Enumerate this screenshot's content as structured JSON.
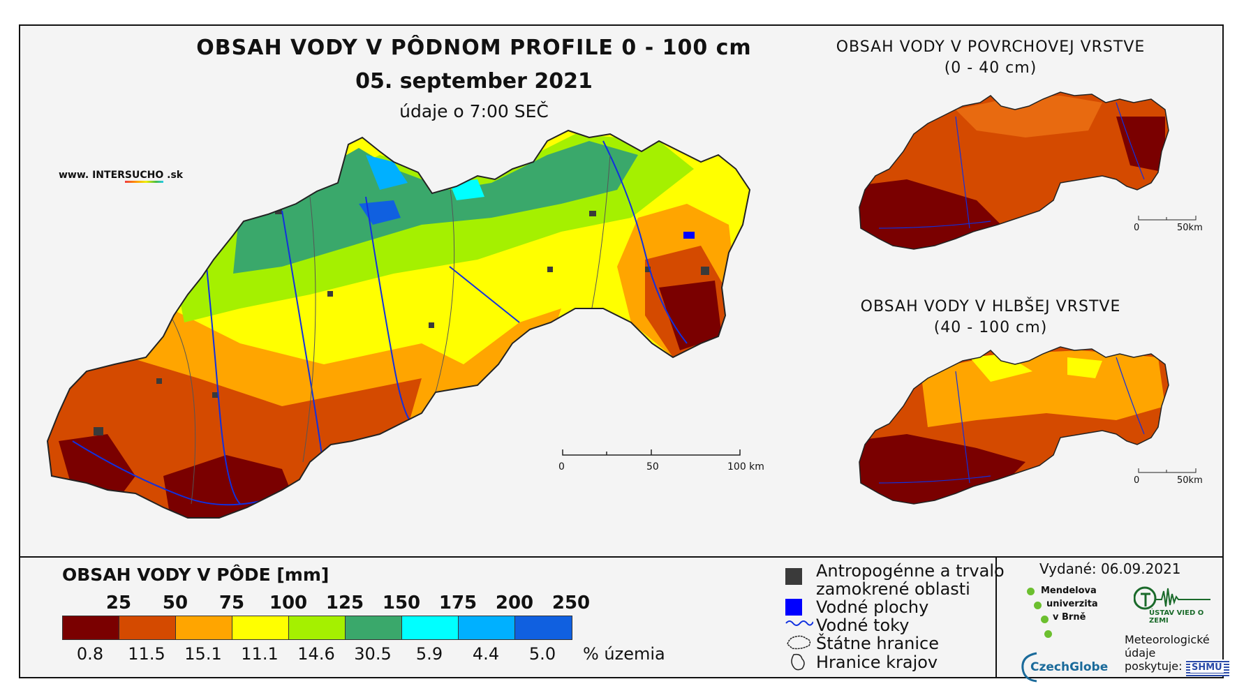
{
  "header": {
    "title": "OBSAH VODY V PÔDNOM PROFILE 0 - 100 cm",
    "date": "05. september 2021",
    "time": "údaje o 7:00 SEČ"
  },
  "watermark": {
    "prefix": "www. INTER",
    "accent": "SUCHO",
    "suffix": " .sk"
  },
  "inset_top": {
    "title": "OBSAH VODY V POVRCHOVEJ VRSTVE",
    "subtitle": "(0 - 40 cm)",
    "scale": {
      "start": "0",
      "end": "50km"
    }
  },
  "inset_bottom": {
    "title": "OBSAH VODY V HLBŠEJ VRSTVE",
    "subtitle": "(40 - 100 cm)",
    "scale": {
      "start": "0",
      "end": "50km"
    }
  },
  "main_scale": {
    "labels": [
      "0",
      "50",
      "100 km"
    ]
  },
  "legend": {
    "title": "OBSAH VODY V PÔDE [mm]",
    "classes": [
      {
        "upper": "25",
        "color": "#7a0000",
        "pct": "0.8"
      },
      {
        "upper": "50",
        "color": "#d44a00",
        "pct": "11.5"
      },
      {
        "upper": "75",
        "color": "#ffa500",
        "pct": "15.1"
      },
      {
        "upper": "100",
        "color": "#ffff00",
        "pct": "11.1"
      },
      {
        "upper": "125",
        "color": "#a5f000",
        "pct": "14.6"
      },
      {
        "upper": "150",
        "color": "#3aa86b",
        "pct": "30.5"
      },
      {
        "upper": "175",
        "color": "#00ffff",
        "pct": "5.9"
      },
      {
        "upper": "200",
        "color": "#00b0ff",
        "pct": "4.4"
      },
      {
        "upper": "250",
        "color": "#1060e0",
        "pct": "5.0"
      }
    ],
    "pct_unit": "% územia"
  },
  "map_legend": {
    "anthropogenic_line1": "Antropogénne a trvalo",
    "anthropogenic_line2": "zamokrené oblasti",
    "water_areas": "Vodné plochy",
    "rivers": "Vodné toky",
    "state_border": "Štátne hranice",
    "region_border": "Hranice krajov",
    "anthropogenic_color": "#3a3a3a",
    "water_color": "#0000ff",
    "river_color": "#1030e0"
  },
  "issued": "Vydané: 06.09.2021",
  "logos": {
    "mendel": [
      "Mendelova",
      "univerzita",
      "v Brně"
    ],
    "uvz": "ÚSTAV VIED O ZEMI",
    "czechglobe": "CzechGlobe",
    "meteo": [
      "Meteorologické",
      "údaje",
      "poskytuje:"
    ],
    "shmu": "SHMÚ"
  }
}
